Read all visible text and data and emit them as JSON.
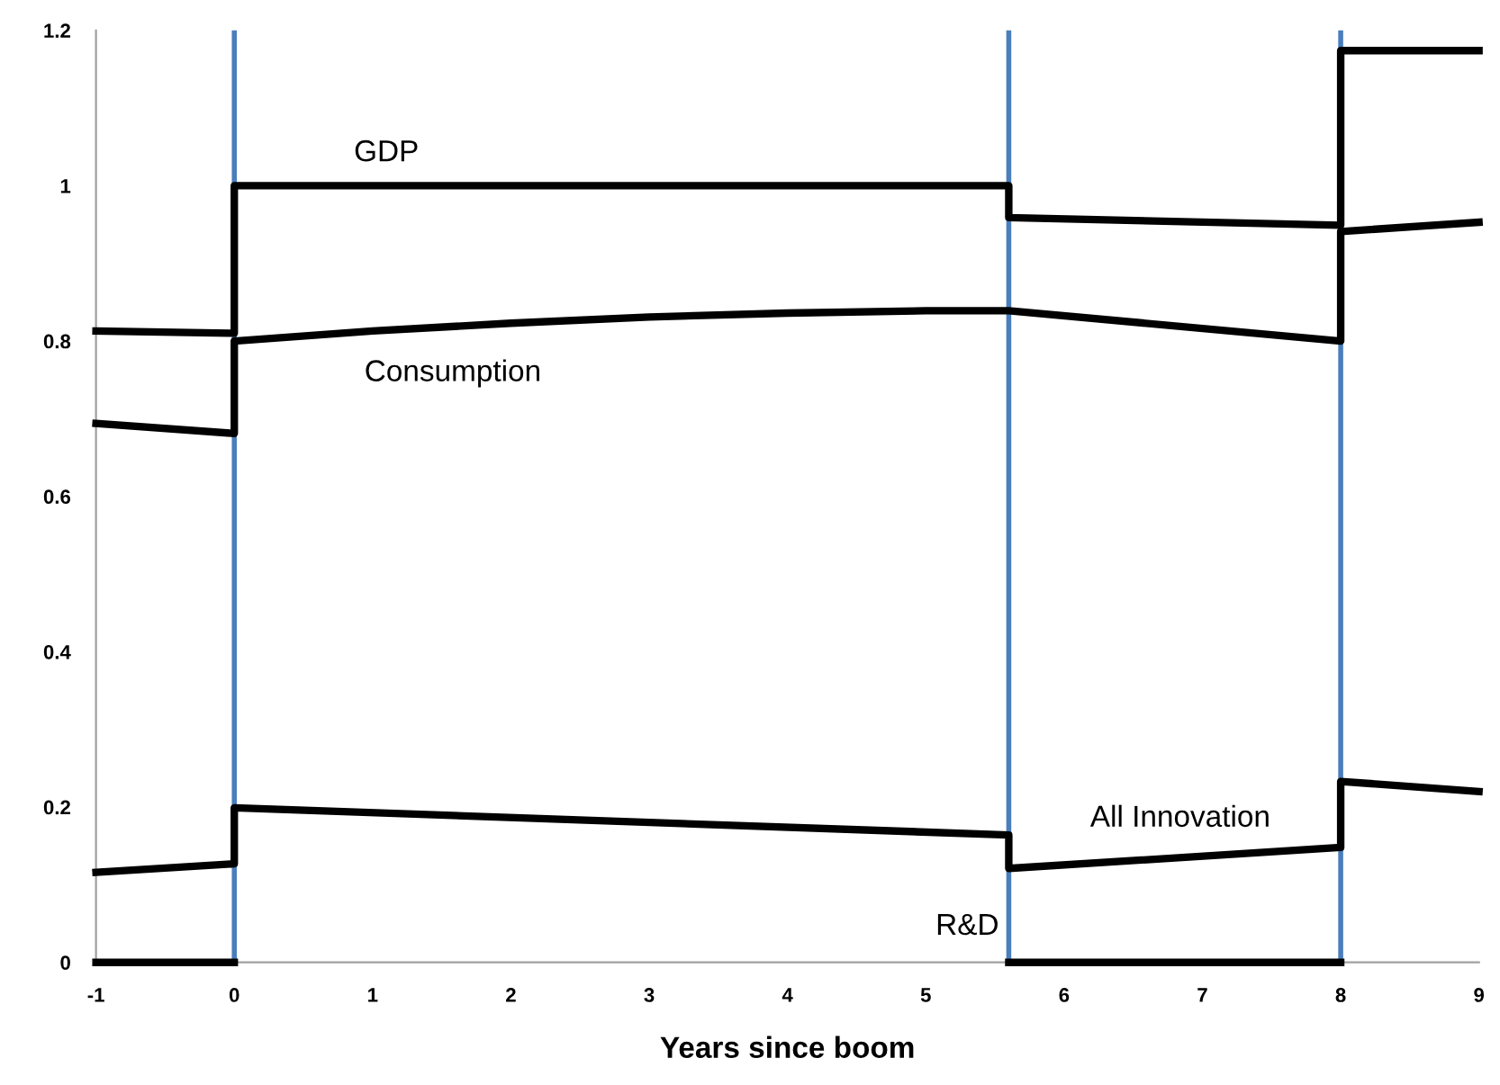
{
  "chart_data": {
    "type": "line",
    "xlabel": "Years since boom",
    "xlim": [
      -1,
      9
    ],
    "xticks": [
      -1,
      0,
      1,
      2,
      3,
      4,
      5,
      6,
      7,
      8,
      9
    ],
    "ylim": [
      0,
      1.2
    ],
    "yticks": [
      0,
      0.2,
      0.4,
      0.6,
      0.8,
      1,
      1.2
    ],
    "grid": false,
    "legend": false,
    "marker": "none",
    "line_style": "solid",
    "series": [
      {
        "name": "GDP",
        "color": "#000000",
        "x": [
          -1,
          0,
          0,
          5.6,
          5.6,
          8,
          8,
          9
        ],
        "values": [
          0.813,
          0.81,
          1.0,
          1.0,
          0.959,
          0.949,
          1.174,
          1.174
        ]
      },
      {
        "name": "Consumption",
        "color": "#000000",
        "x": [
          -1,
          0,
          0,
          1,
          2,
          3,
          4,
          5,
          5.6,
          8,
          8,
          9
        ],
        "values": [
          0.694,
          0.681,
          0.8,
          0.813,
          0.823,
          0.831,
          0.836,
          0.839,
          0.839,
          0.8,
          0.941,
          0.953
        ]
      },
      {
        "name": "All Innovation",
        "color": "#000000",
        "x": [
          -1,
          0,
          0,
          5.6,
          5.6,
          8,
          8,
          9
        ],
        "values": [
          0.116,
          0.127,
          0.199,
          0.164,
          0.121,
          0.148,
          0.233,
          0.22
        ]
      },
      {
        "name": "R&D",
        "color": "#000000",
        "x": [
          -1,
          0,
          2,
          5.6,
          8
        ],
        "values": [
          0,
          0,
          null,
          0,
          0
        ]
      }
    ],
    "ref_lines": [
      {
        "axis": "x",
        "value": 0,
        "color": "#4a7ebb"
      },
      {
        "axis": "x",
        "value": 5.6,
        "color": "#4a7ebb"
      },
      {
        "axis": "x",
        "value": 8,
        "color": "#4a7ebb"
      }
    ]
  }
}
